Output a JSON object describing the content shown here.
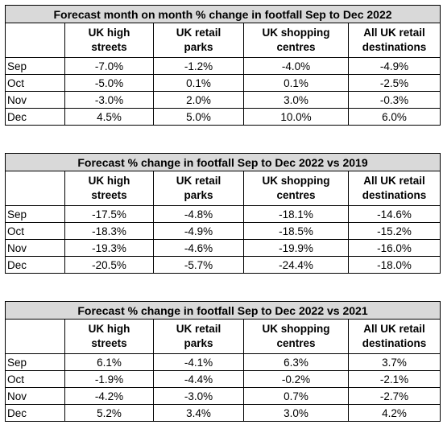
{
  "columns": [
    {
      "line1": "UK high",
      "line2": "streets"
    },
    {
      "line1": "UK retail",
      "line2": "parks"
    },
    {
      "line1": "UK shopping",
      "line2": "centres"
    },
    {
      "line1": "All UK retail",
      "line2": "destinations"
    }
  ],
  "tables": [
    {
      "title": "Forecast month on month % change in footfall Sep to Dec 2022",
      "rows": [
        {
          "month": "Sep",
          "values": [
            "-7.0%",
            "-1.2%",
            "-4.0%",
            "-4.9%"
          ]
        },
        {
          "month": "Oct",
          "values": [
            "-5.0%",
            "0.1%",
            "0.1%",
            "-2.5%"
          ]
        },
        {
          "month": "Nov",
          "values": [
            "-3.0%",
            "2.0%",
            "3.0%",
            "-0.3%"
          ]
        },
        {
          "month": "Dec",
          "values": [
            "4.5%",
            "5.0%",
            "10.0%",
            "6.0%"
          ]
        }
      ]
    },
    {
      "title": "Forecast % change in footfall Sep to Dec 2022 vs 2019",
      "rows": [
        {
          "month": "Sep",
          "values": [
            "-17.5%",
            "-4.8%",
            "-18.1%",
            "-14.6%"
          ]
        },
        {
          "month": "Oct",
          "values": [
            "-18.3%",
            "-4.9%",
            "-18.5%",
            "-15.2%"
          ]
        },
        {
          "month": "Nov",
          "values": [
            "-19.3%",
            "-4.6%",
            "-19.9%",
            "-16.0%"
          ]
        },
        {
          "month": "Dec",
          "values": [
            "-20.5%",
            "-5.7%",
            "-24.4%",
            "-18.0%"
          ]
        }
      ]
    },
    {
      "title": "Forecast % change in footfall Sep to Dec 2022 vs 2021",
      "rows": [
        {
          "month": "Sep",
          "values": [
            "6.1%",
            "-4.1%",
            "6.3%",
            "3.7%"
          ]
        },
        {
          "month": "Oct",
          "values": [
            "-1.9%",
            "-4.4%",
            "-0.2%",
            "-2.1%"
          ]
        },
        {
          "month": "Nov",
          "values": [
            "-4.2%",
            "-3.0%",
            "0.7%",
            "-2.7%"
          ]
        },
        {
          "month": "Dec",
          "values": [
            "5.2%",
            "3.4%",
            "3.0%",
            "4.2%"
          ]
        }
      ]
    }
  ]
}
